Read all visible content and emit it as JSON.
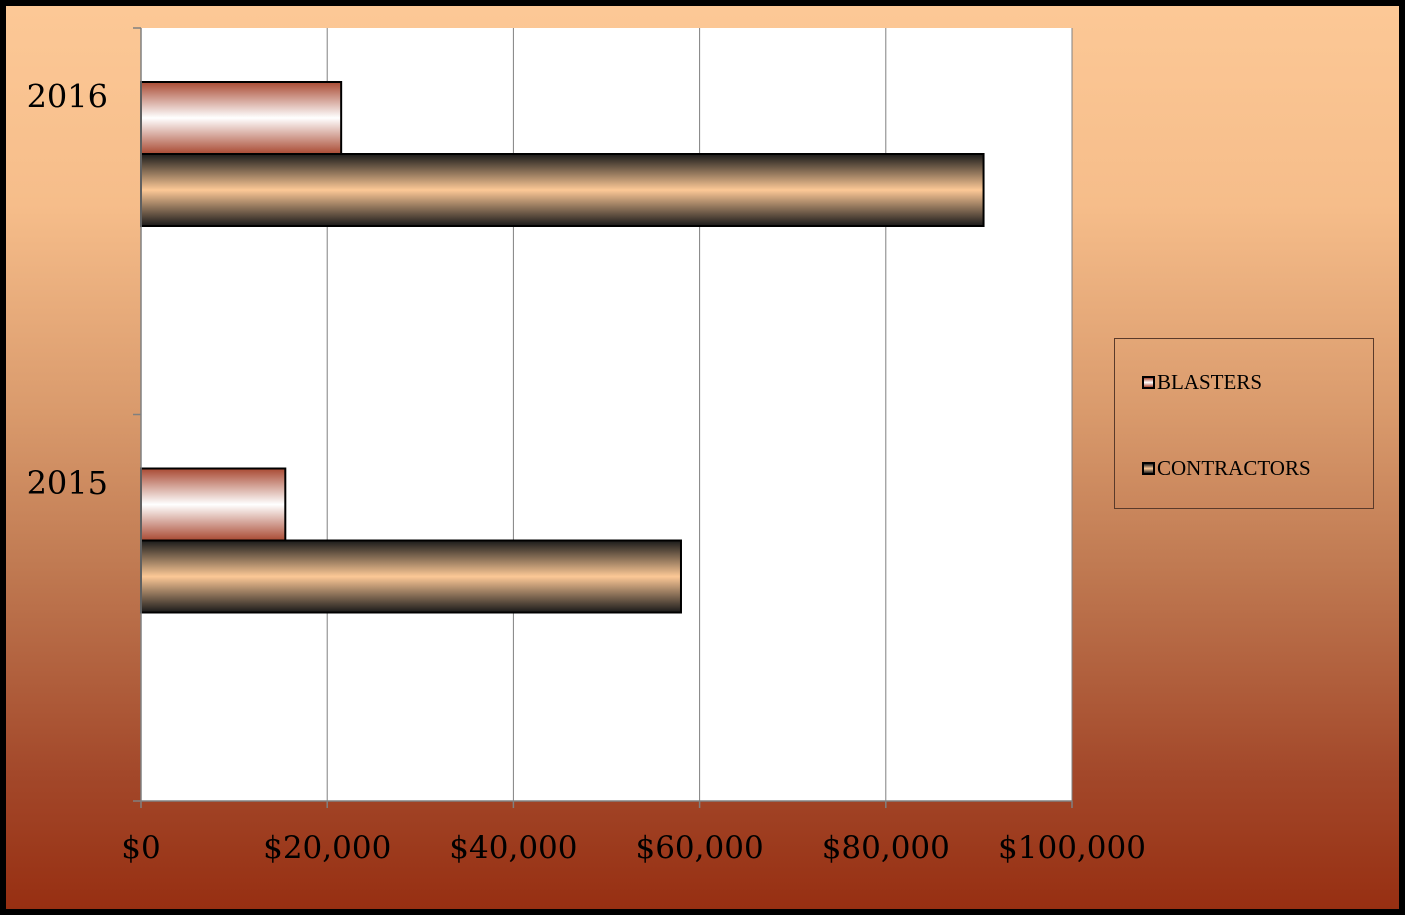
{
  "chart_data": {
    "type": "bar",
    "orientation": "horizontal",
    "categories": [
      "2016",
      "2015"
    ],
    "series": [
      {
        "name": "BLASTERS",
        "values": [
          21500,
          15500
        ],
        "color": "#a94a33"
      },
      {
        "name": "CONTRACTORS",
        "values": [
          90500,
          58000
        ],
        "color": "#fcc896"
      }
    ],
    "x_ticks": [
      "$0",
      "$20,000",
      "$40,000",
      "$60,000",
      "$80,000",
      "$100,000"
    ],
    "xlim": [
      0,
      100000
    ],
    "grid": true,
    "legend_position": "right",
    "title": "",
    "xlabel": "",
    "ylabel": ""
  },
  "legend": {
    "items": [
      {
        "label": "BLASTERS"
      },
      {
        "label": "CONTRACTORS"
      }
    ]
  }
}
